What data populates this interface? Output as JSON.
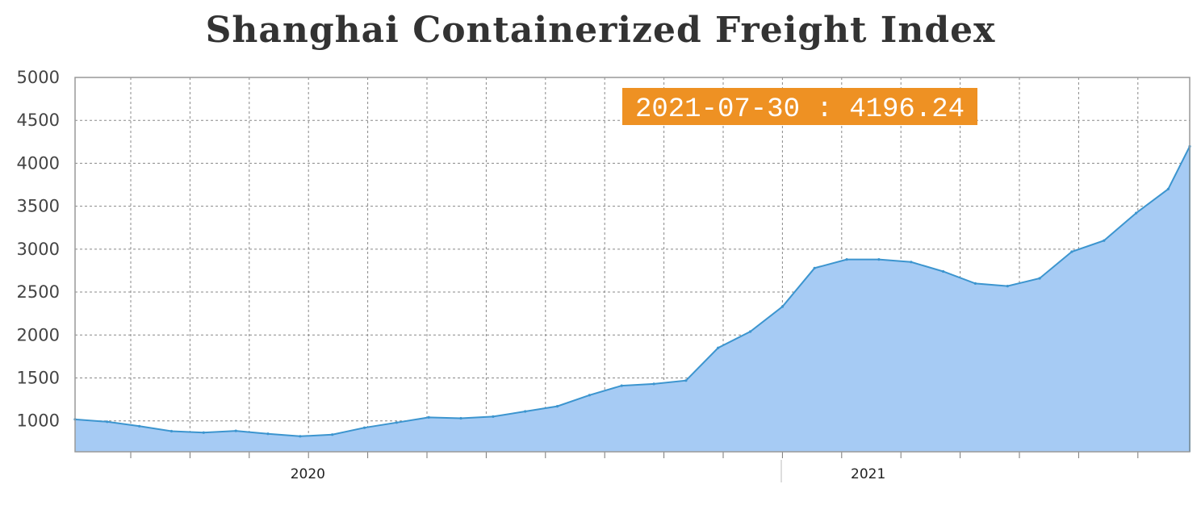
{
  "chart_data": {
    "type": "area",
    "title": "Shanghai Containerized Freight Index",
    "xlabel": "",
    "ylabel": "",
    "ylim": [
      640,
      5000
    ],
    "yticks": [
      1000,
      1500,
      2000,
      2500,
      3000,
      3500,
      4000,
      4500,
      5000
    ],
    "xlim": [
      "2019-08-02",
      "2021-07-30"
    ],
    "xticks": [
      {
        "label": "2020",
        "date": "2020-01-01"
      },
      {
        "label": "2021",
        "date": "2021-01-01"
      }
    ],
    "grid": true,
    "colors": {
      "fill": "#a6cbf4",
      "line": "#3c95cf",
      "tooltip_bg": "#ee9123",
      "grid": "#888888",
      "frame": "#999999"
    },
    "series": [
      {
        "dates": [
          "2019-08-02",
          "2019-08-23",
          "2019-09-13",
          "2019-10-04",
          "2019-10-25",
          "2019-11-15",
          "2019-12-06",
          "2019-12-27",
          "2020-01-17",
          "2020-02-07",
          "2020-02-28",
          "2020-03-20",
          "2020-04-10",
          "2020-05-01",
          "2020-05-22",
          "2020-06-12",
          "2020-07-03",
          "2020-07-24",
          "2020-08-14",
          "2020-09-04",
          "2020-09-25",
          "2020-10-16",
          "2020-11-06",
          "2020-11-27",
          "2020-12-18",
          "2021-01-08",
          "2021-01-29",
          "2021-02-19",
          "2021-03-12",
          "2021-04-02",
          "2021-04-23",
          "2021-05-14",
          "2021-06-04",
          "2021-06-25",
          "2021-07-16",
          "2021-07-30"
        ],
        "values": [
          1017,
          990,
          938,
          880,
          864,
          883,
          850,
          820,
          840,
          920,
          980,
          1040,
          1030,
          1050,
          1110,
          1170,
          1300,
          1410,
          1430,
          1470,
          1850,
          2040,
          2330,
          2780,
          2880,
          2880,
          2850,
          2740,
          2600,
          2570,
          2660,
          2970,
          3100,
          3420,
          3700,
          4196.24
        ]
      }
    ],
    "tooltip": {
      "date": "2021-07-30",
      "value": "4196.24",
      "text": "2021-07-30 : 4196.24"
    }
  }
}
